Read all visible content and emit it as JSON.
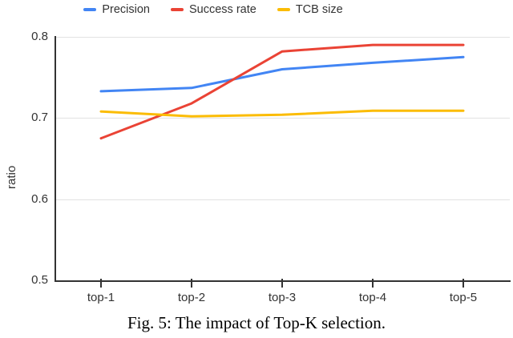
{
  "chart_data": {
    "type": "line",
    "categories": [
      "top-1",
      "top-2",
      "top-3",
      "top-4",
      "top-5"
    ],
    "series": [
      {
        "name": "Precision",
        "color": "#4285f4",
        "values": [
          0.733,
          0.737,
          0.76,
          0.768,
          0.775
        ]
      },
      {
        "name": "Success rate",
        "color": "#ea4335",
        "values": [
          0.675,
          0.718,
          0.782,
          0.79,
          0.79
        ]
      },
      {
        "name": "TCB size",
        "color": "#fbbc04",
        "values": [
          0.708,
          0.702,
          0.704,
          0.709,
          0.709
        ]
      }
    ],
    "xlabel": "",
    "ylabel": "ratio",
    "ylim": [
      0.5,
      0.8
    ],
    "yticks": [
      0.5,
      0.6,
      0.7,
      0.8
    ],
    "grid": true,
    "legend_position": "top"
  },
  "caption": "Fig. 5: The impact of Top-K selection.",
  "colors": {
    "background": "#ffffff",
    "axis": "#333333",
    "gridline": "#e2e2e2",
    "label": "#333333"
  }
}
